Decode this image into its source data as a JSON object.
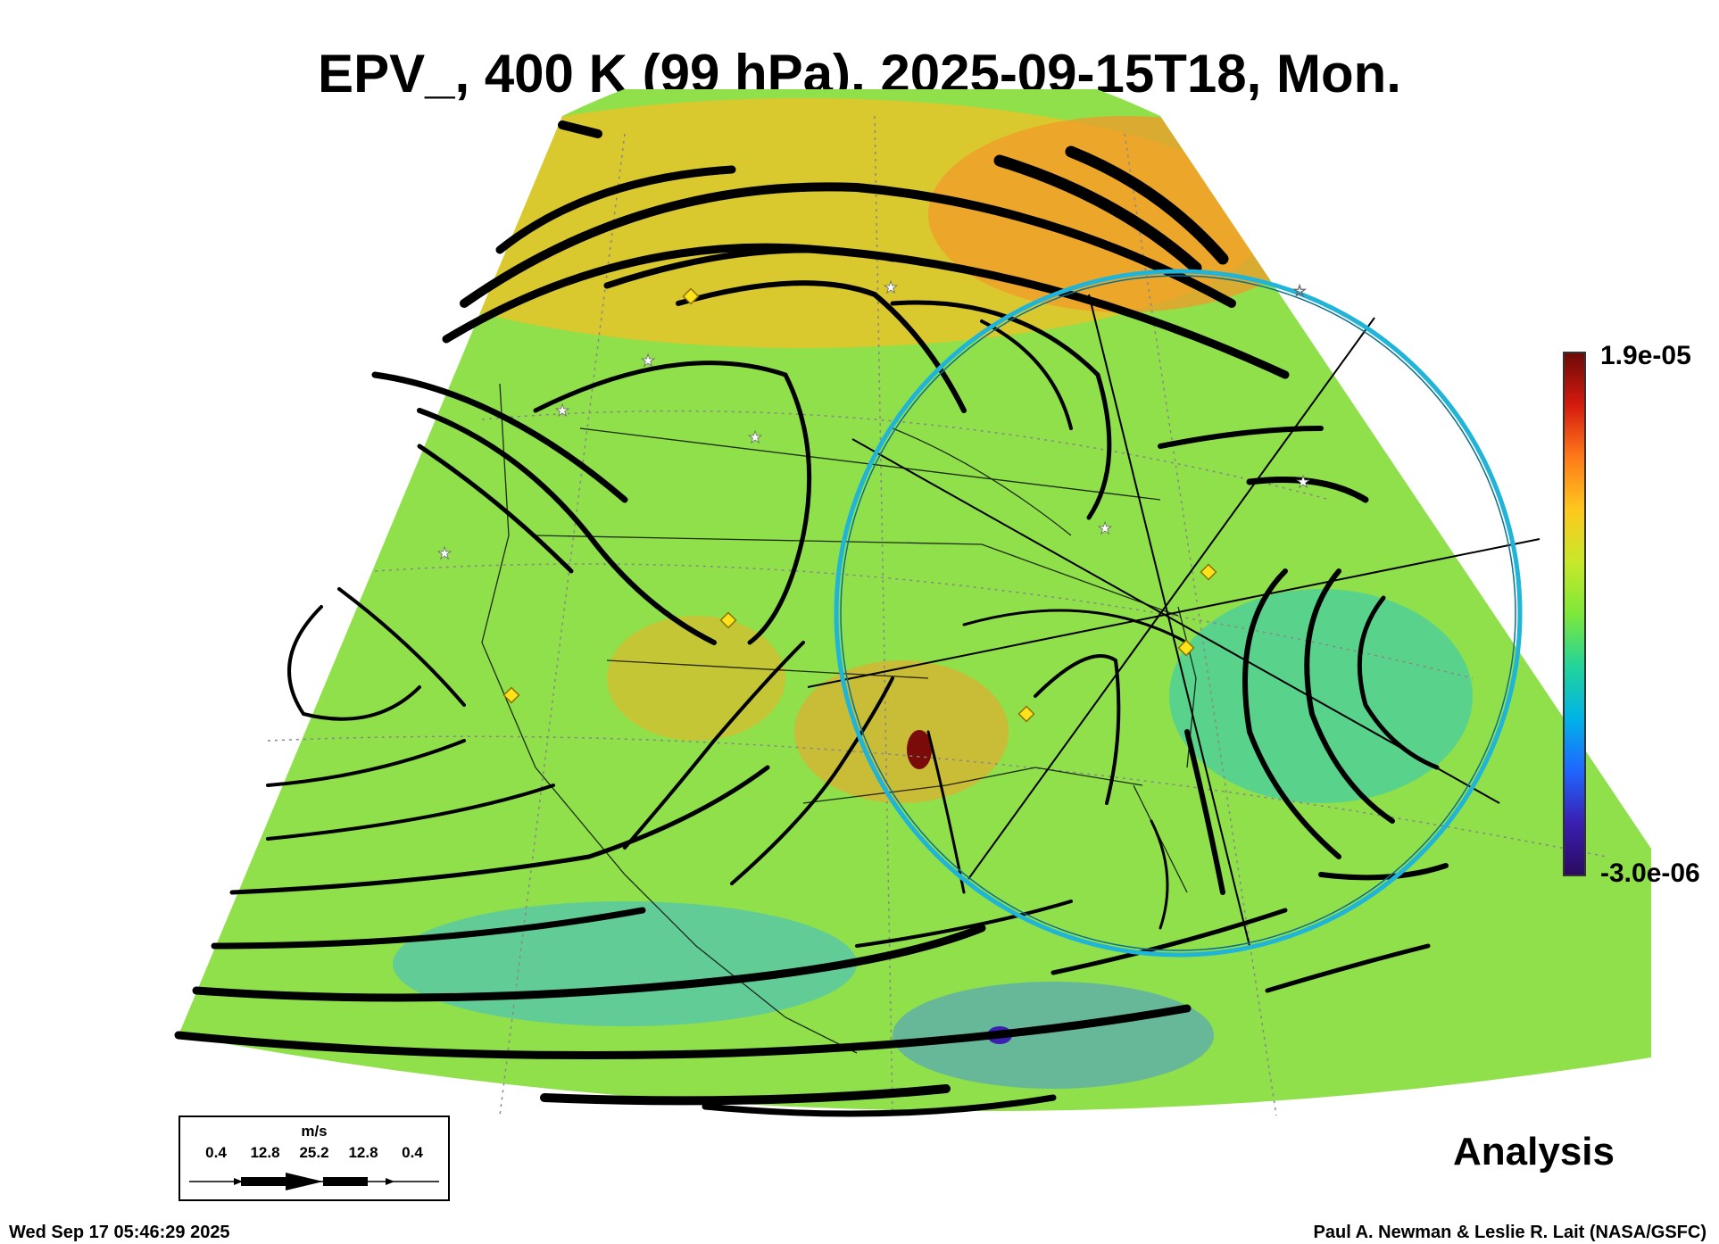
{
  "title": "EPV_, 400 K (99 hPa), 2025-09-15T18, Mon.",
  "colorbar": {
    "max_label": "1.9e-05",
    "min_label": "-3.0e-06",
    "colors": [
      "#2a0a5e",
      "#3a1fb0",
      "#1f66ff",
      "#00b3e6",
      "#22d49a",
      "#7ee83a",
      "#c8e82a",
      "#ffc81e",
      "#ff7a1a",
      "#d41a0f",
      "#6a0b08"
    ]
  },
  "label": "Analysis",
  "legend": {
    "unit": "m/s",
    "values": [
      "0.4",
      "12.8",
      "25.2",
      "12.8",
      "0.4"
    ]
  },
  "timestamp": "Wed Sep 17 05:46:29 2025",
  "credit": "Paul A. Newman & Leslie R. Lait (NASA/GSFC)",
  "map": {
    "field_background": "#8fe04a",
    "streamline_color": "#000000",
    "circle_color": "#1fb4d8",
    "marker_color": "#ffe21a",
    "star_color": "#ffffff"
  }
}
